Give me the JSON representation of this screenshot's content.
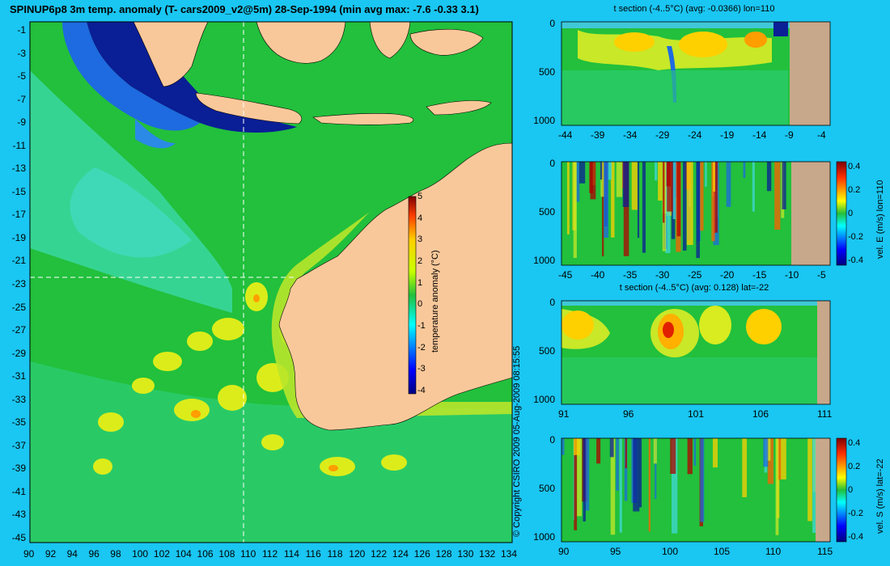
{
  "header": {
    "title": "SPINUP6p8 3m temp. anomaly (T- cars2009_v2@5m) 28-Sep-1994 (min avg max: -7.6 -0.33 3.1)",
    "copyright": "© Copyright CSIRO 2009   05-Aug-2009 08:15:55"
  },
  "map": {
    "lat_ticks": [
      "-1",
      "-3",
      "-5",
      "-7",
      "-9",
      "-11",
      "-13",
      "-15",
      "-17",
      "-19",
      "-21",
      "-23",
      "-25",
      "-27",
      "-29",
      "-31",
      "-33",
      "-35",
      "-37",
      "-39",
      "-41",
      "-43",
      "-45"
    ],
    "lon_ticks": [
      "90",
      "92",
      "94",
      "96",
      "98",
      "100",
      "102",
      "104",
      "106",
      "108",
      "110",
      "112",
      "114",
      "116",
      "118",
      "120",
      "122",
      "124",
      "126",
      "128",
      "130",
      "132",
      "134"
    ],
    "colorbar": {
      "label": "temperature anomaly (°C)",
      "ticks": [
        "5",
        "4",
        "3",
        "2",
        "1",
        "0",
        "-1",
        "-2",
        "-3",
        "-4"
      ]
    },
    "section_lon": "110",
    "section_lat": "-22",
    "colors": {
      "land": "#f9c89a",
      "ocean": "#22c03c",
      "dark": "#0a1e96"
    }
  },
  "panels": {
    "p1": {
      "title": "t section (-4..5°C) (avg: -0.0366) lon=110",
      "x_ticks": [
        "-44",
        "-39",
        "-34",
        "-29",
        "-24",
        "-19",
        "-14",
        "-9",
        "-4"
      ],
      "y_ticks": [
        "0",
        "500",
        "1000"
      ]
    },
    "p2": {
      "title": "",
      "x_ticks": [
        "-45",
        "-40",
        "-35",
        "-30",
        "-25",
        "-20",
        "-15",
        "-10",
        "-5"
      ],
      "y_ticks": [
        "0",
        "500",
        "1000"
      ],
      "colorbar_label": "vel. E (m/s) lon=110",
      "colorbar_ticks": [
        "0.4",
        "0.2",
        "0",
        "-0.2",
        "-0.4"
      ]
    },
    "p3": {
      "title": "t section (-4..5°C) (avg: 0.128) lat=-22",
      "x_ticks": [
        "91",
        "96",
        "101",
        "106",
        "111"
      ],
      "y_ticks": [
        "0",
        "500",
        "1000"
      ]
    },
    "p4": {
      "title": "",
      "x_ticks": [
        "90",
        "95",
        "100",
        "105",
        "110",
        "115"
      ],
      "y_ticks": [
        "0",
        "500",
        "1000"
      ],
      "colorbar_label": "vel. S (m/s) lat=-22",
      "colorbar_ticks": [
        "0.4",
        "0.2",
        "0",
        "-0.2",
        "-0.4"
      ]
    }
  }
}
